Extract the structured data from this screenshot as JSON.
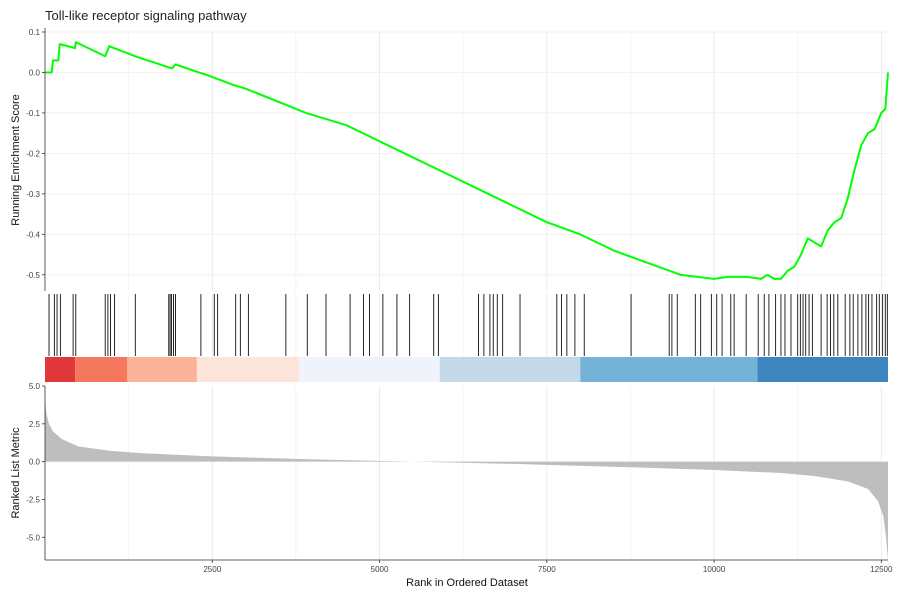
{
  "chart_data": {
    "type": "line",
    "title": "Toll-like receptor signaling pathway",
    "xlabel": "Rank in Ordered Dataset",
    "x_ticks": [
      2500,
      5000,
      7500,
      10000,
      12500
    ],
    "xlim": [
      0,
      12600
    ],
    "panels": {
      "running_score": {
        "ylabel": "Running Enrichment Score",
        "ylim": [
          -0.54,
          0.1
        ],
        "y_ticks": [
          0.1,
          0.0,
          -0.1,
          -0.2,
          -0.3,
          -0.4,
          -0.5
        ],
        "color": "#00ff00",
        "series": [
          {
            "x": [
              0,
              100,
              120,
              200,
              220,
              450,
              460,
              900,
              960,
              1350,
              1900,
              1950,
              2300,
              2400,
              2800,
              3000,
              3600,
              3900,
              4500,
              5000,
              5500,
              6000,
              6500,
              7000,
              7500,
              8000,
              8500,
              9000,
              9500,
              10000,
              10200,
              10500,
              10700,
              10800,
              10900,
              11000,
              11100,
              11200,
              11300,
              11400,
              11600,
              11700,
              11800,
              11900,
              12000,
              12100,
              12200,
              12300,
              12400,
              12500,
              12560,
              12600
            ],
            "y": [
              0.0,
              0.0,
              0.03,
              0.03,
              0.07,
              0.06,
              0.075,
              0.04,
              0.065,
              0.04,
              0.01,
              0.02,
              0.0,
              -0.005,
              -0.03,
              -0.04,
              -0.08,
              -0.1,
              -0.13,
              -0.17,
              -0.21,
              -0.25,
              -0.29,
              -0.33,
              -0.37,
              -0.4,
              -0.44,
              -0.47,
              -0.5,
              -0.51,
              -0.505,
              -0.505,
              -0.51,
              -0.5,
              -0.51,
              -0.51,
              -0.49,
              -0.48,
              -0.45,
              -0.41,
              -0.43,
              -0.39,
              -0.37,
              -0.36,
              -0.31,
              -0.24,
              -0.18,
              -0.15,
              -0.14,
              -0.1,
              -0.09,
              0.0
            ]
          }
        ]
      },
      "hits": {
        "positions": [
          60,
          140,
          180,
          230,
          420,
          460,
          900,
          940,
          980,
          1040,
          1350,
          1850,
          1870,
          1890,
          1920,
          1950,
          2330,
          2530,
          2580,
          2850,
          2920,
          3040,
          3600,
          3920,
          4200,
          4560,
          4760,
          4850,
          5050,
          5260,
          5450,
          5810,
          5880,
          6480,
          6560,
          6650,
          6700,
          6760,
          6840,
          7100,
          7650,
          7720,
          7800,
          7920,
          8060,
          8760,
          9330,
          9370,
          9450,
          9720,
          9800,
          9960,
          10040,
          10120,
          10250,
          10300,
          10480,
          10660,
          10750,
          10820,
          10920,
          11000,
          11060,
          11150,
          11250,
          11290,
          11330,
          11370,
          11420,
          11470,
          11600,
          11690,
          11740,
          11790,
          11850,
          11960,
          12030,
          12080,
          12150,
          12210,
          12270,
          12310,
          12360,
          12430,
          12470,
          12520,
          12560,
          12590
        ]
      },
      "heatmap": {
        "blocks": [
          {
            "start": 0,
            "end": 450,
            "color": "#e0383a"
          },
          {
            "start": 450,
            "end": 1230,
            "color": "#f5775e"
          },
          {
            "start": 1230,
            "end": 2270,
            "color": "#fbb299"
          },
          {
            "start": 2270,
            "end": 3800,
            "color": "#fde4d8"
          },
          {
            "start": 3800,
            "end": 5900,
            "color": "#eff3fc"
          },
          {
            "start": 5900,
            "end": 8000,
            "color": "#c3d9e8"
          },
          {
            "start": 8000,
            "end": 10650,
            "color": "#75b2d8"
          },
          {
            "start": 10650,
            "end": 12600,
            "color": "#3e86c1"
          }
        ]
      },
      "ranked_metric": {
        "ylabel": "Ranked List Metric",
        "ylim": [
          -6.5,
          5.0
        ],
        "y_ticks": [
          5.0,
          2.5,
          0.0,
          -2.5,
          -5.0
        ],
        "y_tick_labels": [
          "5.0",
          "2.5",
          "0.0",
          "-2.5",
          "-5.0"
        ],
        "color": "#bebebe",
        "series": [
          {
            "x": [
              0,
              20,
              60,
              120,
              250,
              500,
              1000,
              1500,
              2000,
              2500,
              3000,
              4000,
              5000,
              6000,
              7000,
              8000,
              9000,
              10000,
              11000,
              11500,
              12000,
              12300,
              12450,
              12530,
              12570,
              12600
            ],
            "y": [
              4.2,
              3.2,
              2.5,
              2.0,
              1.5,
              1.0,
              0.7,
              0.55,
              0.45,
              0.35,
              0.28,
              0.15,
              0.05,
              -0.05,
              -0.15,
              -0.28,
              -0.4,
              -0.55,
              -0.75,
              -0.95,
              -1.3,
              -1.8,
              -2.6,
              -3.6,
              -5.0,
              -6.5
            ]
          }
        ]
      }
    }
  }
}
